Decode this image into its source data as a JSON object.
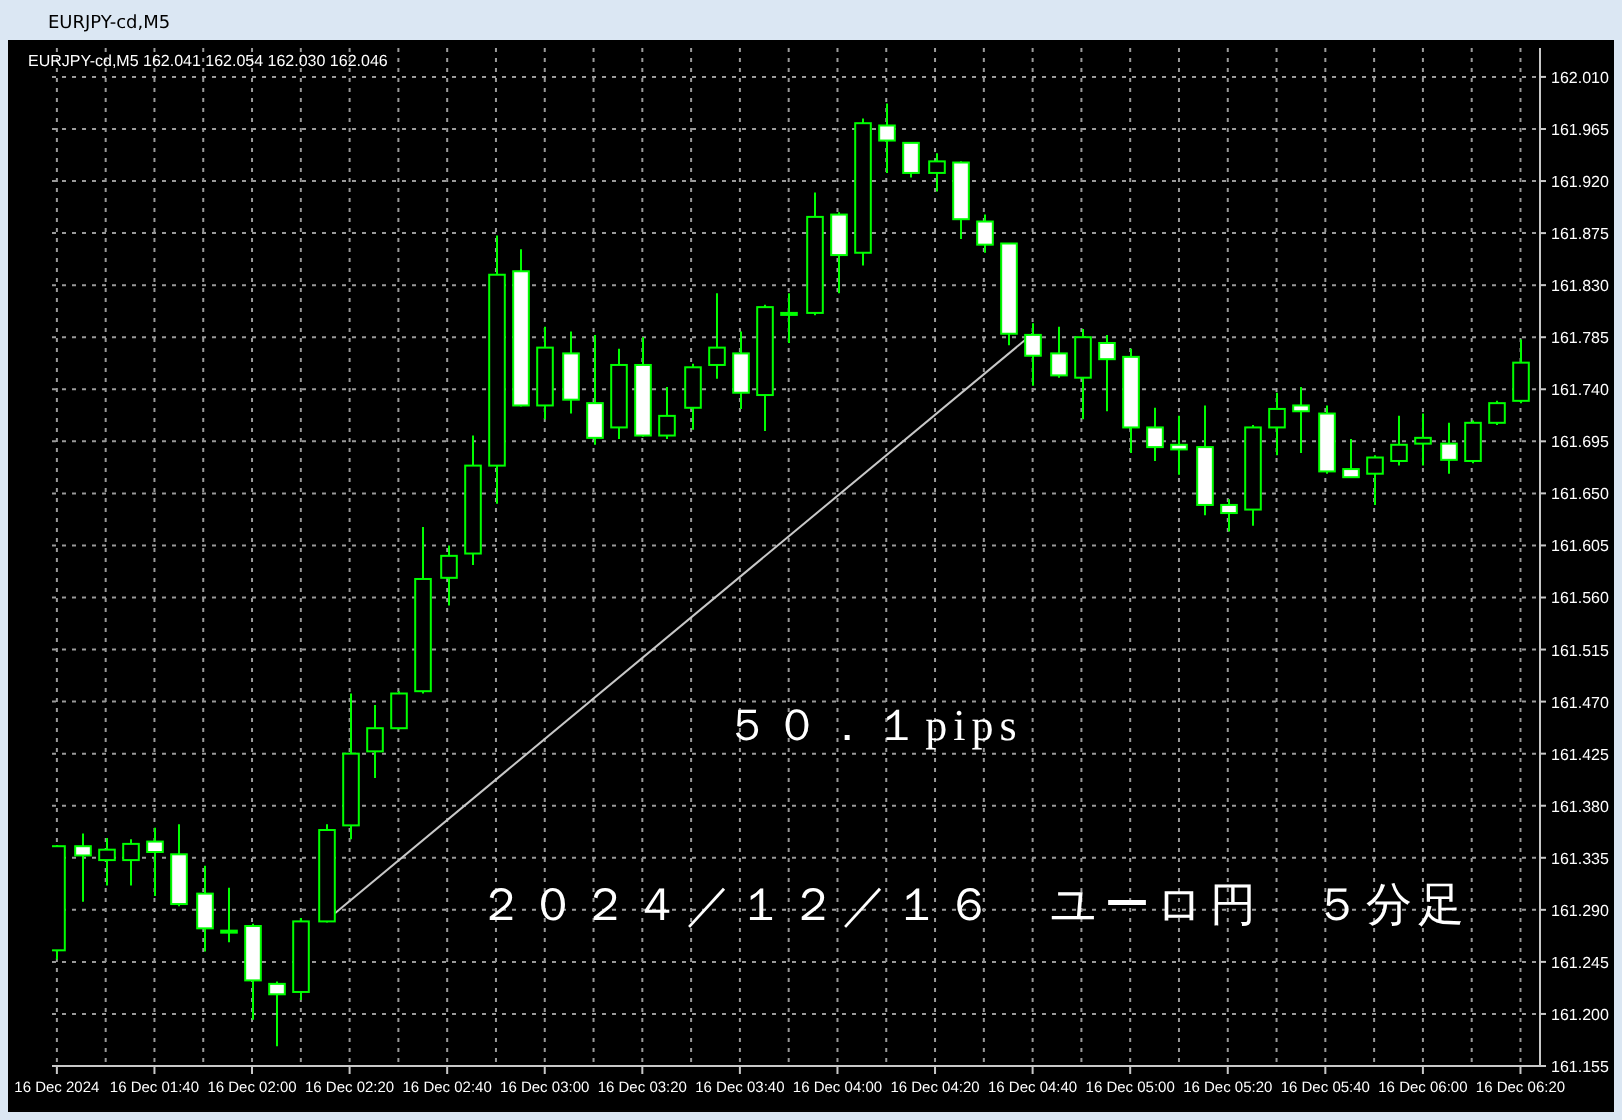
{
  "chart_data": {
    "type": "candlestick",
    "title": "EURJPY-cd,M5",
    "annotations": [
      "EURJPY-cd,M5  162.041 162.054 162.030 162.046",
      "５０．１pips",
      "２０２４／１２／１６　ユーロ円　５分足"
    ],
    "x": [
      "2024-12-16T01:20",
      "2024-12-16T01:25",
      "2024-12-16T01:30",
      "2024-12-16T01:35",
      "2024-12-16T01:40",
      "2024-12-16T01:45",
      "2024-12-16T01:50",
      "2024-12-16T01:55",
      "2024-12-16T02:00",
      "2024-12-16T02:05",
      "2024-12-16T02:10",
      "2024-12-16T02:15",
      "2024-12-16T02:20",
      "2024-12-16T02:25",
      "2024-12-16T02:30",
      "2024-12-16T02:35",
      "2024-12-16T02:40",
      "2024-12-16T02:45",
      "2024-12-16T02:50",
      "2024-12-16T02:55",
      "2024-12-16T03:00",
      "2024-12-16T03:05",
      "2024-12-16T03:10",
      "2024-12-16T03:15",
      "2024-12-16T03:20",
      "2024-12-16T03:25",
      "2024-12-16T03:30",
      "2024-12-16T03:35",
      "2024-12-16T03:40",
      "2024-12-16T03:45",
      "2024-12-16T03:50",
      "2024-12-16T03:55",
      "2024-12-16T04:00",
      "2024-12-16T04:05",
      "2024-12-16T04:10",
      "2024-12-16T04:15",
      "2024-12-16T04:20",
      "2024-12-16T04:25",
      "2024-12-16T04:30",
      "2024-12-16T04:35",
      "2024-12-16T04:40",
      "2024-12-16T04:45",
      "2024-12-16T04:50",
      "2024-12-16T04:55",
      "2024-12-16T05:00",
      "2024-12-16T05:05",
      "2024-12-16T05:10",
      "2024-12-16T05:15",
      "2024-12-16T05:20",
      "2024-12-16T05:25",
      "2024-12-16T05:30",
      "2024-12-16T05:35",
      "2024-12-16T05:40",
      "2024-12-16T05:45",
      "2024-12-16T05:50",
      "2024-12-16T05:55",
      "2024-12-16T06:00",
      "2024-12-16T06:05",
      "2024-12-16T06:10",
      "2024-12-16T06:15",
      "2024-12-16T06:20"
    ],
    "ohlc": [
      [
        161.255,
        161.346,
        161.247,
        161.345
      ],
      [
        161.345,
        161.356,
        161.297,
        161.337
      ],
      [
        161.333,
        161.352,
        161.311,
        161.342
      ],
      [
        161.333,
        161.351,
        161.311,
        161.347
      ],
      [
        161.349,
        161.361,
        161.302,
        161.34
      ],
      [
        161.338,
        161.364,
        161.293,
        161.295
      ],
      [
        161.304,
        161.328,
        161.254,
        161.274
      ],
      [
        161.272,
        161.309,
        161.262,
        161.271
      ],
      [
        161.276,
        161.278,
        161.195,
        161.229
      ],
      [
        161.226,
        161.228,
        161.172,
        161.217
      ],
      [
        161.219,
        161.283,
        161.212,
        161.28
      ],
      [
        161.28,
        161.364,
        161.279,
        161.359
      ],
      [
        161.363,
        161.477,
        161.351,
        161.425
      ],
      [
        161.427,
        161.467,
        161.404,
        161.447
      ],
      [
        161.447,
        161.479,
        161.446,
        161.477
      ],
      [
        161.479,
        161.621,
        161.477,
        161.576
      ],
      [
        161.577,
        161.605,
        161.553,
        161.596
      ],
      [
        161.598,
        161.7,
        161.588,
        161.674
      ],
      [
        161.674,
        161.873,
        161.641,
        161.839
      ],
      [
        161.842,
        161.861,
        161.725,
        161.726
      ],
      [
        161.726,
        161.794,
        161.714,
        161.776
      ],
      [
        161.771,
        161.79,
        161.719,
        161.731
      ],
      [
        161.728,
        161.787,
        161.692,
        161.698
      ],
      [
        161.707,
        161.775,
        161.697,
        161.761
      ],
      [
        161.761,
        161.785,
        161.699,
        161.7
      ],
      [
        161.7,
        161.742,
        161.697,
        161.717
      ],
      [
        161.724,
        161.762,
        161.705,
        161.759
      ],
      [
        161.761,
        161.823,
        161.749,
        161.776
      ],
      [
        161.771,
        161.79,
        161.723,
        161.737
      ],
      [
        161.735,
        161.813,
        161.704,
        161.811
      ],
      [
        161.805,
        161.823,
        161.78,
        161.806
      ],
      [
        161.806,
        161.91,
        161.804,
        161.889
      ],
      [
        161.891,
        161.893,
        161.823,
        161.856
      ],
      [
        161.858,
        161.974,
        161.847,
        161.97
      ],
      [
        161.968,
        161.987,
        161.927,
        161.955
      ],
      [
        161.953,
        161.953,
        161.923,
        161.927
      ],
      [
        161.927,
        161.944,
        161.911,
        161.937
      ],
      [
        161.936,
        161.937,
        161.87,
        161.887
      ],
      [
        161.885,
        161.891,
        161.858,
        161.865
      ],
      [
        161.866,
        161.866,
        161.778,
        161.788
      ],
      [
        161.787,
        161.797,
        161.743,
        161.769
      ],
      [
        161.771,
        161.794,
        161.75,
        161.752
      ],
      [
        161.75,
        161.792,
        161.714,
        161.785
      ],
      [
        161.78,
        161.787,
        161.721,
        161.766
      ],
      [
        161.768,
        161.775,
        161.685,
        161.707
      ],
      [
        161.707,
        161.724,
        161.678,
        161.69
      ],
      [
        161.692,
        161.717,
        161.666,
        161.688
      ],
      [
        161.69,
        161.726,
        161.631,
        161.64
      ],
      [
        161.64,
        161.645,
        161.617,
        161.633
      ],
      [
        161.636,
        161.709,
        161.622,
        161.707
      ],
      [
        161.707,
        161.737,
        161.683,
        161.723
      ],
      [
        161.726,
        161.742,
        161.685,
        161.721
      ],
      [
        161.719,
        161.726,
        161.667,
        161.669
      ],
      [
        161.671,
        161.697,
        161.664,
        161.664
      ],
      [
        161.667,
        161.683,
        161.64,
        161.681
      ],
      [
        161.678,
        161.717,
        161.674,
        161.692
      ],
      [
        161.693,
        161.719,
        161.674,
        161.698
      ],
      [
        161.693,
        161.711,
        161.667,
        161.679
      ],
      [
        161.678,
        161.713,
        161.676,
        161.711
      ],
      [
        161.711,
        161.73,
        161.709,
        161.728
      ],
      [
        161.73,
        161.783,
        161.728,
        161.763
      ]
    ],
    "series": [
      {
        "type": "line",
        "x": [
          "2024-12-16T02:17",
          "2024-12-16T04:40"
        ],
        "values": [
          161.287,
          161.788
        ],
        "color": "#c8c8c8"
      }
    ],
    "xlim": [
      "2024-12-16T01:19",
      "2024-12-16T06:24"
    ],
    "xticks": [
      {
        "value": "2024-12-16T01:20",
        "label": "16 Dec 2024"
      },
      {
        "value": "2024-12-16T01:30",
        "label": null
      },
      {
        "value": "2024-12-16T01:40",
        "label": "16 Dec 01:40"
      },
      {
        "value": "2024-12-16T01:50",
        "label": null
      },
      {
        "value": "2024-12-16T02:00",
        "label": "16 Dec 02:00"
      },
      {
        "value": "2024-12-16T02:10",
        "label": null
      },
      {
        "value": "2024-12-16T02:20",
        "label": "16 Dec 02:20"
      },
      {
        "value": "2024-12-16T02:30",
        "label": null
      },
      {
        "value": "2024-12-16T02:40",
        "label": "16 Dec 02:40"
      },
      {
        "value": "2024-12-16T02:50",
        "label": null
      },
      {
        "value": "2024-12-16T03:00",
        "label": "16 Dec 03:00"
      },
      {
        "value": "2024-12-16T03:10",
        "label": null
      },
      {
        "value": "2024-12-16T03:20",
        "label": "16 Dec 03:20"
      },
      {
        "value": "2024-12-16T03:30",
        "label": null
      },
      {
        "value": "2024-12-16T03:40",
        "label": "16 Dec 03:40"
      },
      {
        "value": "2024-12-16T03:50",
        "label": null
      },
      {
        "value": "2024-12-16T04:00",
        "label": "16 Dec 04:00"
      },
      {
        "value": "2024-12-16T04:10",
        "label": null
      },
      {
        "value": "2024-12-16T04:20",
        "label": "16 Dec 04:20"
      },
      {
        "value": "2024-12-16T04:30",
        "label": null
      },
      {
        "value": "2024-12-16T04:40",
        "label": "16 Dec 04:40"
      },
      {
        "value": "2024-12-16T04:50",
        "label": null
      },
      {
        "value": "2024-12-16T05:00",
        "label": "16 Dec 05:00"
      },
      {
        "value": "2024-12-16T05:10",
        "label": null
      },
      {
        "value": "2024-12-16T05:20",
        "label": "16 Dec 05:20"
      },
      {
        "value": "2024-12-16T05:30",
        "label": null
      },
      {
        "value": "2024-12-16T05:40",
        "label": "16 Dec 05:40"
      },
      {
        "value": "2024-12-16T05:50",
        "label": null
      },
      {
        "value": "2024-12-16T06:00",
        "label": "16 Dec 06:00"
      },
      {
        "value": "2024-12-16T06:10",
        "label": null
      },
      {
        "value": "2024-12-16T06:20",
        "label": "16 Dec 06:20"
      }
    ],
    "ylim": [
      161.155,
      162.035
    ],
    "yticks": [
      161.155,
      {
        "value": 161.2,
        "label": "161.200"
      },
      161.245,
      {
        "value": 161.29,
        "label": "161.290"
      },
      161.335,
      {
        "value": 161.38,
        "label": "161.380"
      },
      161.425,
      {
        "value": 161.47,
        "label": "161.470"
      },
      161.515,
      {
        "value": 161.56,
        "label": "161.560"
      },
      161.605,
      {
        "value": 161.65,
        "label": "161.650"
      },
      161.695,
      {
        "value": 161.74,
        "label": "161.740"
      },
      161.785,
      {
        "value": 161.83,
        "label": "161.830"
      },
      161.875,
      {
        "value": 161.92,
        "label": "161.920"
      },
      161.965,
      {
        "value": 162.01,
        "label": "162.010"
      }
    ],
    "grid": true
  }
}
